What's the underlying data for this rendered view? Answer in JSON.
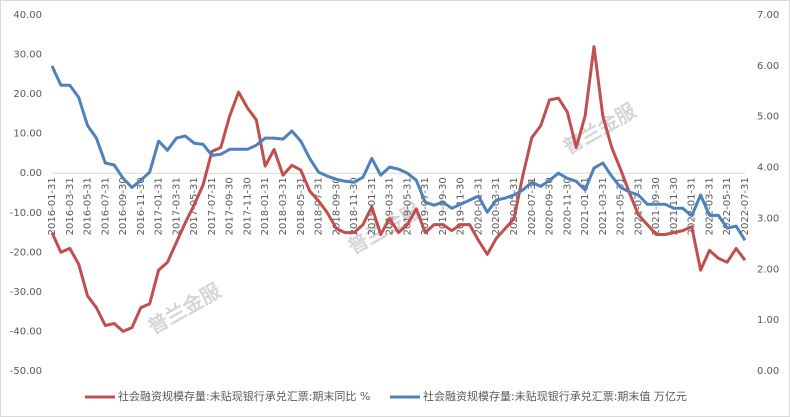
{
  "chart_data": {
    "type": "line",
    "categories": [
      "2016-01-31",
      null,
      "2016-03-31",
      null,
      "2016-05-31",
      null,
      "2016-07-31",
      null,
      "2016-09-30",
      null,
      "2016-11-30",
      null,
      "2017-01-31",
      null,
      "2017-03-31",
      null,
      "2017-05-31",
      null,
      "2017-07-31",
      null,
      "2017-09-30",
      null,
      "2017-11-30",
      null,
      "2018-01-31",
      null,
      "2018-03-31",
      null,
      "2018-05-31",
      null,
      "2018-07-31",
      null,
      "2018-09-30",
      null,
      "2018-11-30",
      null,
      "2019-01-31",
      null,
      "2019-03-31",
      null,
      "2019-05-31",
      null,
      "2019-07-31",
      null,
      "2019-09-30",
      null,
      "2019-11-30",
      null,
      "2020-01-31",
      null,
      "2020-03-31",
      null,
      "2020-05-31",
      null,
      "2020-07-31",
      null,
      "2020-09-30",
      null,
      "2020-11-30",
      null,
      "2021-01-31",
      null,
      "2021-03-31",
      null,
      "2021-05-31",
      null,
      "2021-07-31",
      null,
      "2021-09-30",
      null,
      "2021-11-30",
      null,
      "2022-01-31",
      null,
      "2022-03-31",
      null,
      "2022-05-31",
      null,
      "2022-07-31"
    ],
    "series": [
      {
        "name": "社会融资规模存量:未贴现银行承兑汇票:期末同比 %",
        "color": "#c0504d",
        "values": [
          -15,
          -20,
          -19,
          -23,
          -31,
          -34,
          -38.5,
          -38,
          -40,
          -39,
          -34,
          -33,
          -24.5,
          -22.5,
          -17.5,
          -12.5,
          -8,
          -3,
          5.5,
          6.5,
          14.5,
          20.5,
          16.5,
          13.5,
          1.8,
          6,
          -0.5,
          2,
          0.8,
          -4.5,
          -7,
          -10,
          -14,
          -15,
          -15,
          -13,
          -8.5,
          -15.5,
          -11.5,
          -15,
          -13,
          -9,
          -15,
          -13,
          -13,
          -14.5,
          -13,
          -13,
          -17,
          -20.5,
          -16.5,
          -14,
          -11.5,
          -0.5,
          9,
          12,
          18.5,
          19,
          15.5,
          6.5,
          14.5,
          32,
          14.5,
          6.5,
          1,
          -5,
          -10.5,
          -13,
          -15.5,
          -15.5,
          -15,
          -14.5,
          -13.5,
          -24.5,
          -19.5,
          -21.5,
          -22.5,
          -19,
          -22
        ]
      },
      {
        "name": "社会融资规模存量:未贴现银行承兑汇票:期末值 万亿元",
        "color": "#4f81bd",
        "axis": "y2",
        "values": [
          6.0,
          5.62,
          5.62,
          5.38,
          4.83,
          4.58,
          4.09,
          4.05,
          3.79,
          3.61,
          3.75,
          3.91,
          4.52,
          4.34,
          4.58,
          4.62,
          4.48,
          4.46,
          4.24,
          4.26,
          4.36,
          4.36,
          4.36,
          4.44,
          4.58,
          4.58,
          4.56,
          4.72,
          4.52,
          4.18,
          3.91,
          3.83,
          3.77,
          3.73,
          3.71,
          3.81,
          4.18,
          3.85,
          4.01,
          3.97,
          3.89,
          3.75,
          3.32,
          3.26,
          3.32,
          3.2,
          3.28,
          3.36,
          3.44,
          3.12,
          3.36,
          3.4,
          3.46,
          3.56,
          3.71,
          3.63,
          3.75,
          3.89,
          3.79,
          3.73,
          3.56,
          3.99,
          4.09,
          3.83,
          3.61,
          3.52,
          3.46,
          3.28,
          3.28,
          3.28,
          3.2,
          3.2,
          3.05,
          3.46,
          3.06,
          3.06,
          2.81,
          2.85,
          2.57
        ]
      }
    ],
    "ylim": [
      -50,
      40
    ],
    "yticks": [
      {
        "value": -50,
        "label": "-50.00"
      },
      {
        "value": -40,
        "label": "-40.00"
      },
      {
        "value": -30,
        "label": "-30.00"
      },
      {
        "value": -20,
        "label": "-20.00"
      },
      {
        "value": -10,
        "label": "-10.00"
      },
      {
        "value": 0,
        "label": "0.00"
      },
      {
        "value": 10,
        "label": "10.00"
      },
      {
        "value": 20,
        "label": "20.00"
      },
      {
        "value": 30,
        "label": "30.00"
      },
      {
        "value": 40,
        "label": "40.00"
      }
    ],
    "y2lim": [
      0,
      7
    ],
    "y2ticks": [
      {
        "value": 0,
        "label": "0.00"
      },
      {
        "value": 1,
        "label": "1.00"
      },
      {
        "value": 2,
        "label": "2.00"
      },
      {
        "value": 3,
        "label": "3.00"
      },
      {
        "value": 4,
        "label": "4.00"
      },
      {
        "value": 5,
        "label": "5.00"
      },
      {
        "value": 6,
        "label": "6.00"
      },
      {
        "value": 7,
        "label": "7.00"
      }
    ],
    "legend": "bottom",
    "watermark": "普兰金服"
  }
}
